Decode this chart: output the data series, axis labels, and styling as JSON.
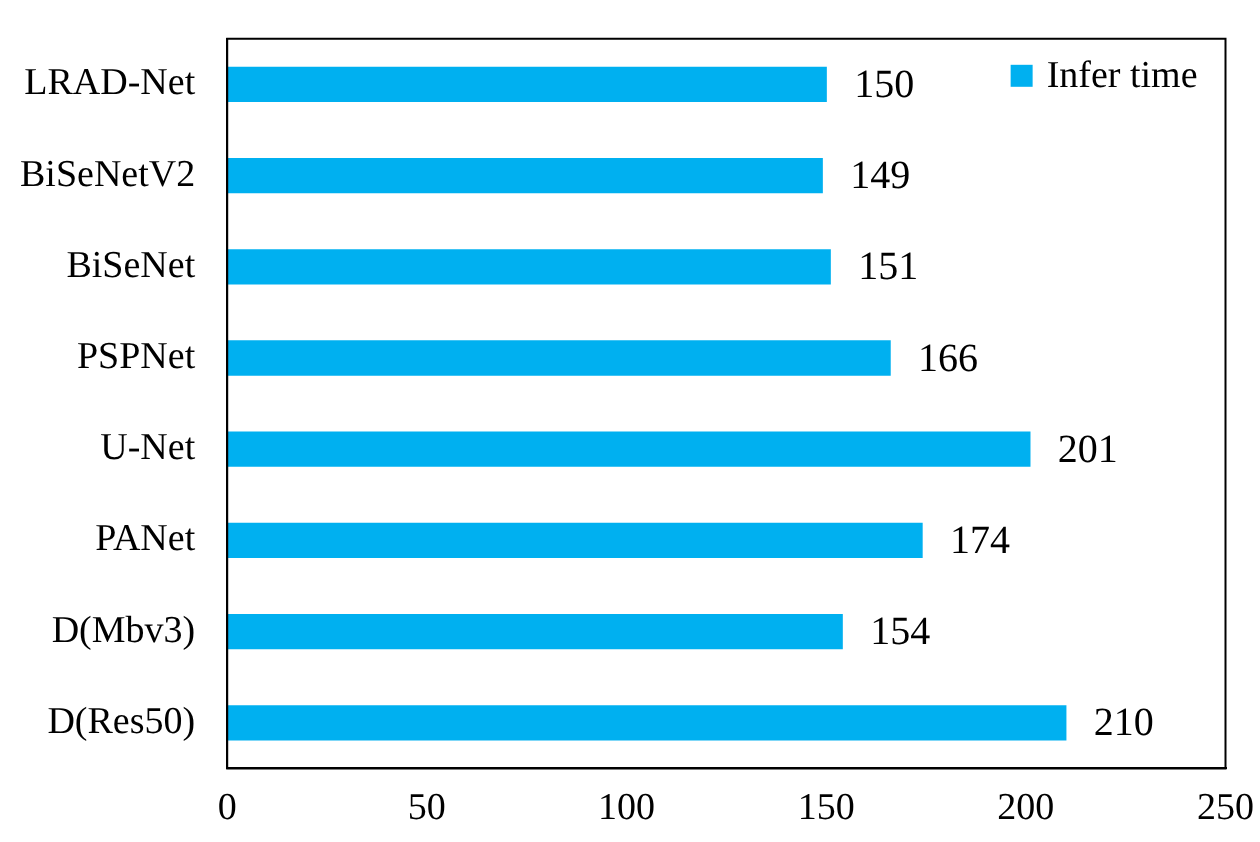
{
  "chart_data": {
    "type": "bar",
    "orientation": "horizontal",
    "categories": [
      "LRAD-Net",
      "BiSeNetV2",
      "BiSeNet",
      "PSPNet",
      "U-Net",
      "PANet",
      "D(Mbv3)",
      "D(Res50)"
    ],
    "series": [
      {
        "name": "Infer time",
        "color": "#00b0f0",
        "values": [
          150,
          149,
          151,
          166,
          201,
          174,
          154,
          210
        ]
      }
    ],
    "xlim": [
      0,
      250
    ],
    "xticks": [
      0,
      50,
      100,
      150,
      200,
      250
    ],
    "grid": false,
    "legend": "top right",
    "data_labels": true
  }
}
